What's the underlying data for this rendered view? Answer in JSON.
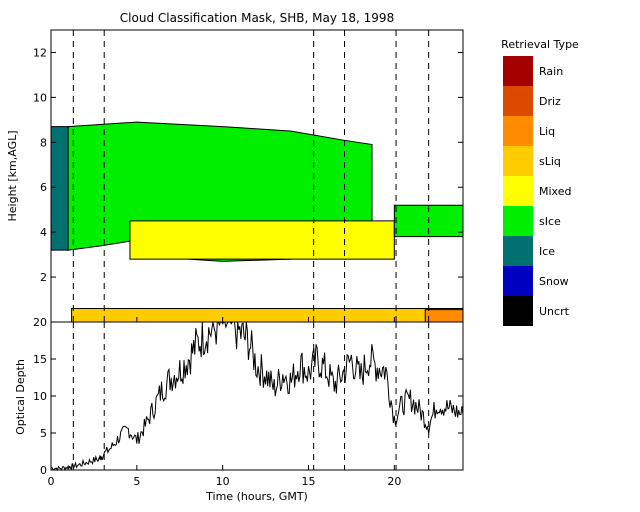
{
  "chart_data": [
    {
      "type": "heatmap",
      "title": "Cloud Classification Mask, SHB, May 18, 1998",
      "xlabel": "",
      "ylabel": "Height [km,AGL]",
      "xlim": [
        0,
        24
      ],
      "ylim": [
        0,
        13
      ],
      "xticks": [
        "0",
        "5",
        "10",
        "15",
        "20"
      ],
      "yticks": [
        "2",
        "4",
        "6",
        "8",
        "10",
        "12"
      ],
      "dashed_lines_hours": [
        1.3,
        3.1,
        15.3,
        17.1,
        20.1,
        22.0
      ],
      "legend_title": "Retrieval Type",
      "legend": [
        {
          "label": "Rain",
          "color": "#a50000"
        },
        {
          "label": "Driz",
          "color": "#dc4a00"
        },
        {
          "label": "Liq",
          "color": "#ff8c00"
        },
        {
          "label": "sLiq",
          "color": "#ffcc00"
        },
        {
          "label": "Mixed",
          "color": "#ffff00"
        },
        {
          "label": "sIce",
          "color": "#00ee00"
        },
        {
          "label": "Ice",
          "color": "#007070"
        },
        {
          "label": "Snow",
          "color": "#0000c0"
        },
        {
          "label": "Uncrt",
          "color": "#000000"
        }
      ],
      "regions": [
        {
          "class": "Ice",
          "x": [
            0,
            1.0
          ],
          "y_bottom": 3.2,
          "y_top": 8.7
        },
        {
          "class": "sIce",
          "x": [
            1.0,
            18.7
          ],
          "y_bottom_series": [
            [
              1.0,
              3.2
            ],
            [
              3.0,
              3.4
            ],
            [
              4.6,
              3.6
            ],
            [
              6.0,
              2.9
            ],
            [
              10,
              2.7
            ],
            [
              14,
              2.8
            ],
            [
              17,
              3.0
            ],
            [
              18.7,
              3.4
            ]
          ],
          "y_top_series": [
            [
              1.0,
              8.7
            ],
            [
              5,
              8.9
            ],
            [
              10,
              8.7
            ],
            [
              14,
              8.5
            ],
            [
              17,
              8.1
            ],
            [
              18.7,
              7.9
            ]
          ]
        },
        {
          "class": "Mixed",
          "x": [
            4.6,
            20.0
          ],
          "y_bottom": 2.8,
          "y_top": 4.5
        },
        {
          "class": "sIce",
          "x": [
            20.0,
            24
          ],
          "y_bottom": 3.8,
          "y_top": 5.2
        },
        {
          "class": "sLiq",
          "x": [
            1.2,
            24
          ],
          "y_bottom": 0.0,
          "y_top": 0.6
        },
        {
          "class": "Liq",
          "x": [
            21.8,
            24
          ],
          "y_bottom": 0.0,
          "y_top": 0.55
        }
      ]
    },
    {
      "type": "line",
      "xlabel": "Time (hours, GMT)",
      "ylabel": "Optical Depth",
      "xlim": [
        0,
        24
      ],
      "ylim": [
        0,
        20
      ],
      "xticks": [
        "0",
        "5",
        "10",
        "15",
        "20"
      ],
      "yticks": [
        "0",
        "5",
        "10",
        "15",
        "20"
      ],
      "dashed_lines_hours": [
        1.3,
        3.1,
        15.3,
        17.1,
        20.1,
        22.0
      ],
      "series": [
        {
          "x": [
            0,
            0.5,
            1.0,
            1.3,
            1.8,
            2.3,
            2.8,
            3.0,
            3.5,
            4.0,
            4.5,
            5.0,
            5.5,
            6.0,
            6.5,
            7.0,
            7.5,
            8.0,
            8.5,
            9.0,
            9.5,
            10.0,
            10.5,
            11.0,
            11.5,
            12.0,
            12.5,
            13.0,
            13.5,
            14.0,
            14.5,
            15.0,
            15.5,
            16.0,
            16.5,
            17.0,
            17.5,
            18.0,
            18.5,
            19.0,
            19.5,
            20.0,
            20.5,
            21.0,
            21.5,
            22.0,
            22.5,
            23.0,
            23.5,
            24.0
          ],
          "values": [
            0.3,
            0.2,
            0.4,
            0.5,
            0.8,
            1.2,
            1.5,
            2.0,
            3.0,
            4.5,
            5.5,
            4.0,
            6.0,
            8.5,
            11.0,
            12.5,
            13.5,
            15.0,
            17.0,
            18.5,
            19.0,
            20.0,
            19.5,
            18.5,
            17.5,
            14.0,
            13.0,
            11.0,
            13.0,
            12.0,
            14.5,
            13.0,
            15.0,
            13.5,
            11.5,
            13.0,
            15.0,
            12.5,
            15.0,
            14.0,
            13.5,
            7.0,
            9.0,
            9.5,
            8.0,
            6.0,
            9.0,
            8.5,
            8.0,
            7.5
          ]
        }
      ]
    }
  ]
}
